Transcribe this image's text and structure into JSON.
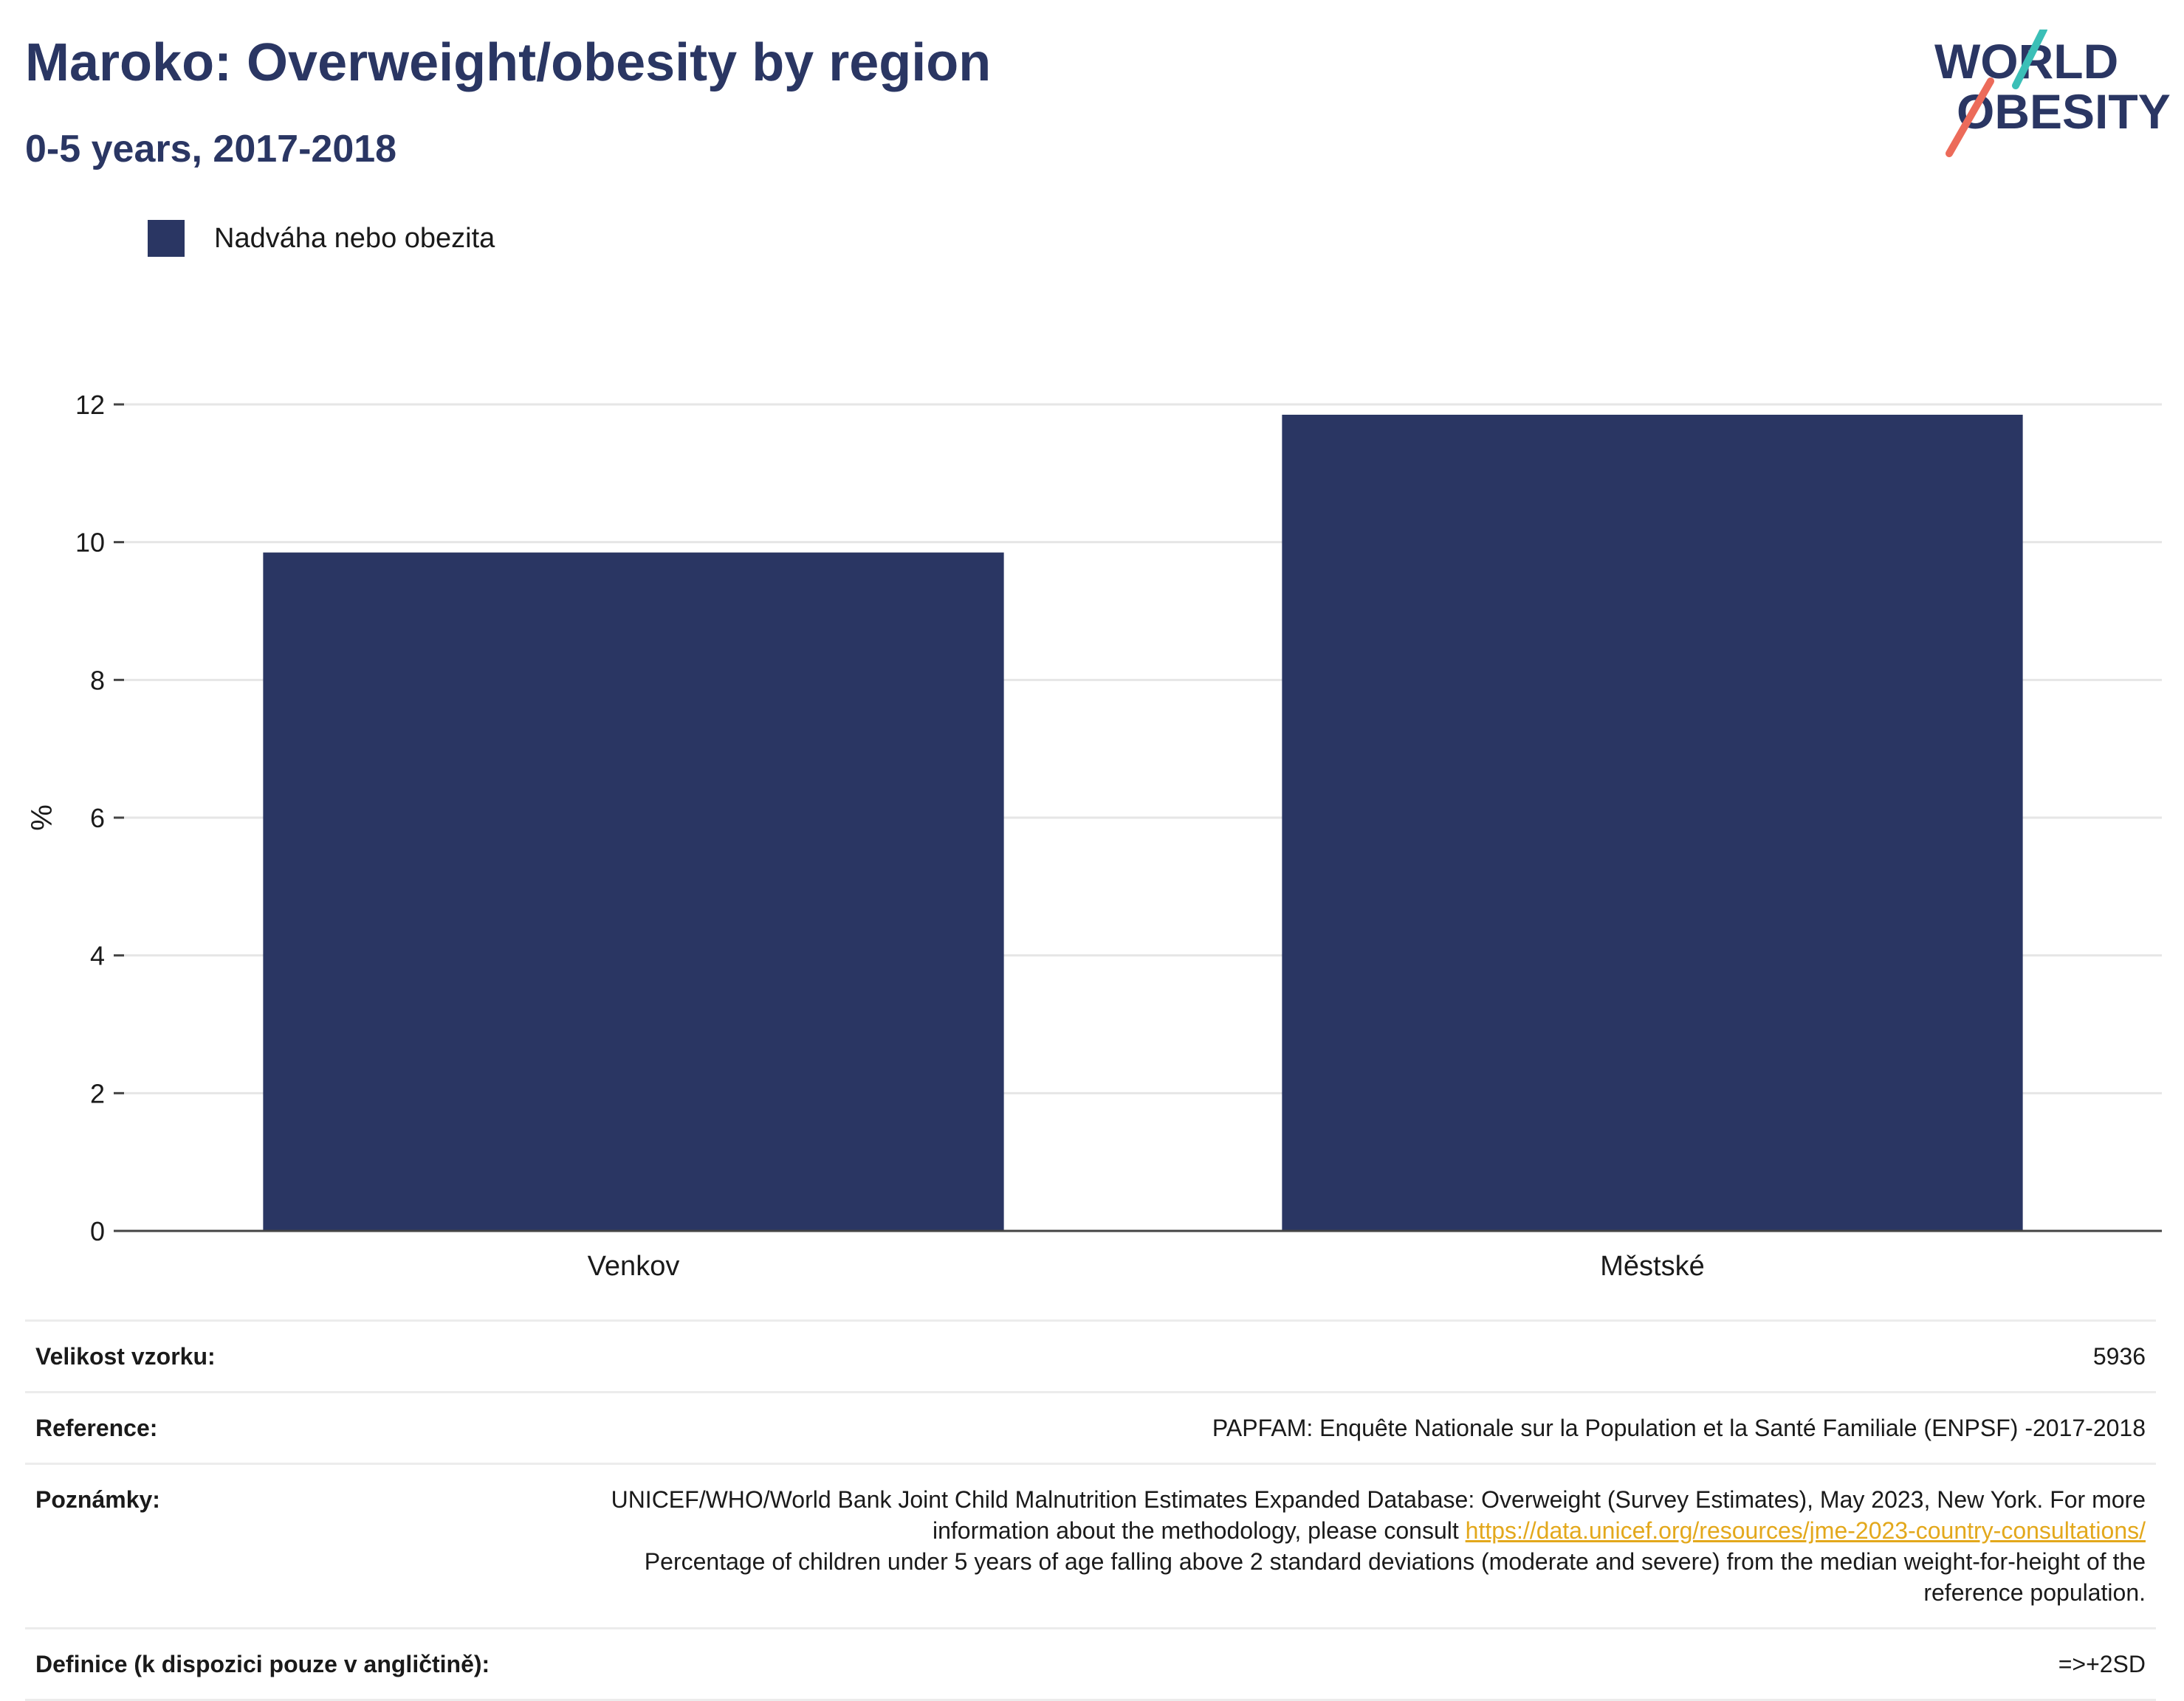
{
  "header": {
    "title": "Maroko: Overweight/obesity by region",
    "subtitle": "0-5 years, 2017-2018"
  },
  "logo": {
    "line1": "WORLD",
    "line2": "OBESITY"
  },
  "colors": {
    "bar": "#2a3663",
    "title": "#2a3663",
    "link": "#e3a81c",
    "logo_teal": "#3bbfb7",
    "logo_coral": "#ec6b5a"
  },
  "chart_data": {
    "type": "bar",
    "categories": [
      "Venkov",
      "Městské"
    ],
    "series": [
      {
        "name": "Nadváha nebo obezita",
        "values": [
          9.85,
          11.85
        ]
      }
    ],
    "title": "Maroko: Overweight/obesity by region",
    "subtitle": "0-5 years, 2017-2018",
    "xlabel": "",
    "ylabel": "%",
    "ylim": [
      0,
      12
    ],
    "yticks": [
      0,
      2,
      4,
      6,
      8,
      10,
      12
    ],
    "grid": true,
    "legend_position": "top-left"
  },
  "meta": {
    "sample_label": "Velikost vzorku:",
    "sample_value": "5936",
    "reference_label": "Reference:",
    "reference_value": "PAPFAM: Enquête Nationale sur la Population et la Santé Familiale (ENPSF) -2017-2018",
    "notes_label": "Poznámky:",
    "notes_text_1": "UNICEF/WHO/World Bank Joint Child Malnutrition Estimates Expanded Database: Overweight (Survey Estimates), May 2023, New York. For more information about the methodology, please consult ",
    "notes_link": "https://data.unicef.org/resources/jme-2023-country-consultations/",
    "notes_text_2": "Percentage of children under 5 years of age falling above 2 standard deviations (moderate and severe) from the median weight-for-height of the reference population.",
    "definition_label": "Definice (k dispozici pouze v angličtině):",
    "definition_value": "=>+2SD"
  }
}
